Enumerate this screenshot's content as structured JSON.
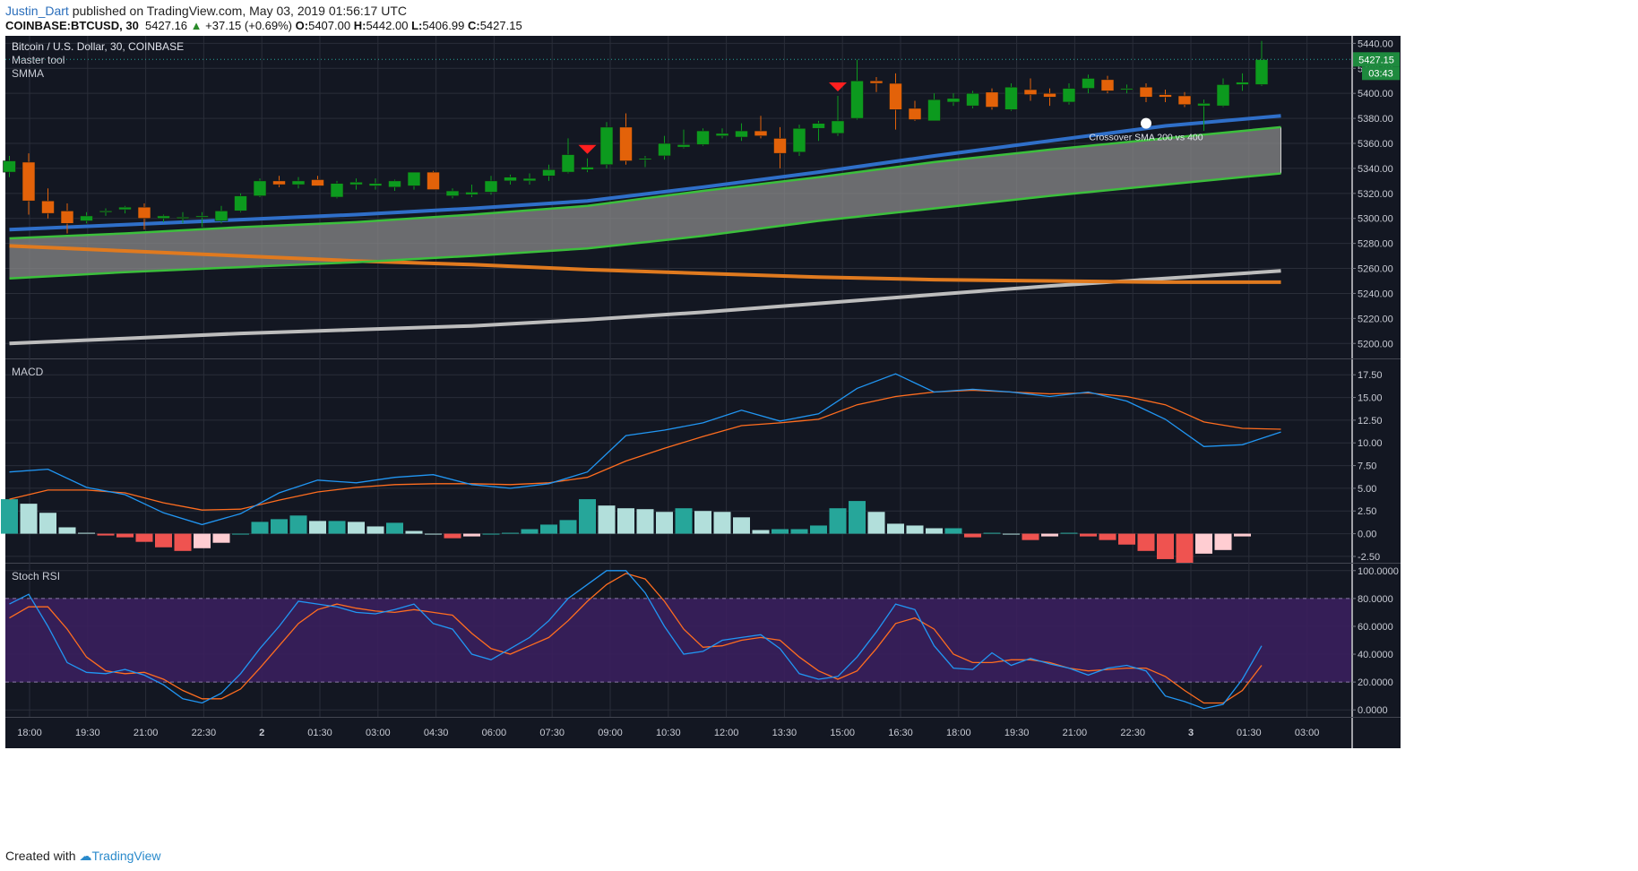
{
  "header": {
    "author": "Justin_Dart",
    "published": "published on TradingView.com, May 03, 2019 01:56:17 UTC",
    "symbol": "COINBASE:BTCUSD, 30",
    "last": "5427.16",
    "change": "+37.15 (+0.69%)",
    "open_label": "O:",
    "open": "5407.00",
    "high_label": "H:",
    "high": "5442.00",
    "low_label": "L:",
    "low": "5406.99",
    "close_label": "C:",
    "close": "5427.15"
  },
  "footer": {
    "created_with": "Created with",
    "brand": "TradingView"
  },
  "colors": {
    "background": "#131722",
    "grid": "#2a2e39",
    "bull": "#26a69a",
    "candle_up": "#0c9a1e",
    "candle_down": "#e36209",
    "smma_fast": "#2f6fc9",
    "band": "#3cbf3c",
    "band_fill": "#8a8a8a",
    "sma200": "#e07a1f",
    "sma400": "#bdbdbd",
    "macd": "#2196f3",
    "signal": "#ff6d1f",
    "hist_pos_strong": "#26a69a",
    "hist_pos_weak": "#b2dfdb",
    "hist_neg_strong": "#ef5350",
    "hist_neg_weak": "#ffcdd2",
    "stoch_k": "#2196f3",
    "stoch_d": "#ff6d1f",
    "stoch_band": "#3a1f5d"
  },
  "chart_data": [
    {
      "type": "candlestick",
      "title": "Bitcoin / U.S. Dollar, 30, COINBASE",
      "legend": [
        "Master tool",
        "SMMA"
      ],
      "ylim": [
        5188,
        5446
      ],
      "y_ticks": [
        "5200.00",
        "5220.00",
        "5240.00",
        "5260.00",
        "5280.00",
        "5300.00",
        "5320.00",
        "5340.00",
        "5360.00",
        "5380.00",
        "5400.00",
        "5420.00",
        "5440.00"
      ],
      "x_ticks": [
        "18:00",
        "19:30",
        "21:00",
        "22:30",
        "2",
        "01:30",
        "03:00",
        "04:30",
        "06:00",
        "07:30",
        "09:00",
        "10:30",
        "12:00",
        "13:30",
        "15:00",
        "16:30",
        "18:00",
        "19:30",
        "21:00",
        "22:30",
        "3",
        "01:30",
        "03:00"
      ],
      "last_price": "5427.15",
      "countdown": "03:43",
      "annotation": "Crossover SMA 200 vs 400",
      "down_markers": [
        30,
        43
      ],
      "candles": [
        [
          5337,
          5350,
          5333,
          5346
        ],
        [
          5345,
          5352,
          5303,
          5314
        ],
        [
          5314,
          5324,
          5300,
          5304
        ],
        [
          5306,
          5312,
          5288,
          5296
        ],
        [
          5298,
          5305,
          5296,
          5302
        ],
        [
          5305,
          5308,
          5302,
          5306
        ],
        [
          5307,
          5310,
          5304,
          5309
        ],
        [
          5309,
          5312,
          5291,
          5300
        ],
        [
          5300,
          5303,
          5297,
          5302
        ],
        [
          5301,
          5305,
          5296,
          5301
        ],
        [
          5301,
          5305,
          5293,
          5302
        ],
        [
          5298,
          5310,
          5296,
          5306
        ],
        [
          5306,
          5320,
          5305,
          5318
        ],
        [
          5318,
          5332,
          5317,
          5330
        ],
        [
          5330,
          5334,
          5325,
          5327
        ],
        [
          5327,
          5333,
          5324,
          5330
        ],
        [
          5331,
          5334,
          5326,
          5326
        ],
        [
          5317,
          5330,
          5316,
          5328
        ],
        [
          5327,
          5332,
          5323,
          5329
        ],
        [
          5326,
          5332,
          5323,
          5328
        ],
        [
          5325,
          5331,
          5322,
          5330
        ],
        [
          5326,
          5336,
          5323,
          5337
        ],
        [
          5337,
          5338,
          5323,
          5323
        ],
        [
          5318,
          5324,
          5316,
          5322
        ],
        [
          5319,
          5327,
          5317,
          5321
        ],
        [
          5321,
          5334,
          5319,
          5330
        ],
        [
          5330,
          5335,
          5327,
          5333
        ],
        [
          5330,
          5336,
          5327,
          5332
        ],
        [
          5334,
          5343,
          5330,
          5339
        ],
        [
          5337,
          5364,
          5336,
          5351
        ],
        [
          5339,
          5348,
          5337,
          5341
        ],
        [
          5343,
          5377,
          5340,
          5373
        ],
        [
          5373,
          5384,
          5343,
          5346
        ],
        [
          5347,
          5350,
          5341,
          5348
        ],
        [
          5350,
          5366,
          5347,
          5360
        ],
        [
          5357,
          5371,
          5356,
          5359
        ],
        [
          5359,
          5372,
          5358,
          5370
        ],
        [
          5366,
          5372,
          5364,
          5368
        ],
        [
          5365,
          5376,
          5362,
          5370
        ],
        [
          5370,
          5382,
          5364,
          5366
        ],
        [
          5364,
          5373,
          5340,
          5352
        ],
        [
          5353,
          5375,
          5350,
          5372
        ],
        [
          5372,
          5378,
          5362,
          5376
        ],
        [
          5368,
          5398,
          5366,
          5378
        ],
        [
          5380,
          5427,
          5379,
          5410
        ],
        [
          5410,
          5413,
          5401,
          5408
        ],
        [
          5408,
          5416,
          5371,
          5387
        ],
        [
          5388,
          5394,
          5378,
          5379
        ],
        [
          5378,
          5400,
          5378,
          5395
        ],
        [
          5393,
          5400,
          5390,
          5396
        ],
        [
          5390,
          5402,
          5388,
          5400
        ],
        [
          5401,
          5404,
          5387,
          5389
        ],
        [
          5387,
          5408,
          5386,
          5405
        ],
        [
          5403,
          5412,
          5394,
          5399
        ],
        [
          5400,
          5404,
          5390,
          5397
        ],
        [
          5393,
          5408,
          5391,
          5404
        ],
        [
          5404,
          5415,
          5400,
          5412
        ],
        [
          5411,
          5414,
          5400,
          5402
        ],
        [
          5403,
          5407,
          5400,
          5404
        ],
        [
          5405,
          5408,
          5393,
          5397
        ],
        [
          5399,
          5403,
          5393,
          5397
        ],
        [
          5398,
          5401,
          5389,
          5391
        ],
        [
          5390,
          5395,
          5370,
          5392
        ],
        [
          5390,
          5412,
          5389,
          5407
        ],
        [
          5407,
          5416,
          5402,
          5409
        ],
        [
          5407,
          5442,
          5406,
          5427
        ]
      ],
      "series": [
        {
          "name": "SMMA",
          "x": [
            0,
            6,
            12,
            18,
            24,
            30,
            36,
            42,
            48,
            54,
            60,
            66
          ],
          "values": [
            5291,
            5295,
            5299,
            5303,
            5308,
            5314,
            5325,
            5337,
            5350,
            5362,
            5374,
            5382
          ]
        },
        {
          "name": "upper band",
          "x": [
            0,
            6,
            12,
            18,
            24,
            30,
            36,
            42,
            48,
            54,
            60,
            66
          ],
          "values": [
            5284,
            5288,
            5293,
            5297,
            5303,
            5310,
            5322,
            5333,
            5345,
            5355,
            5364,
            5373
          ]
        },
        {
          "name": "lower band",
          "x": [
            0,
            6,
            12,
            18,
            24,
            30,
            36,
            42,
            48,
            54,
            60,
            66
          ],
          "values": [
            5252,
            5257,
            5261,
            5265,
            5270,
            5276,
            5286,
            5298,
            5308,
            5318,
            5327,
            5336
          ]
        },
        {
          "name": "SMA 200",
          "x": [
            0,
            6,
            12,
            18,
            24,
            30,
            36,
            42,
            48,
            54,
            60,
            66
          ],
          "values": [
            5278,
            5274,
            5270,
            5266,
            5263,
            5259,
            5256,
            5253,
            5251,
            5250,
            5249,
            5249
          ]
        },
        {
          "name": "SMA 400",
          "x": [
            0,
            6,
            12,
            18,
            24,
            30,
            36,
            42,
            48,
            54,
            60,
            66
          ],
          "values": [
            5200,
            5204,
            5208,
            5211,
            5214,
            5219,
            5225,
            5232,
            5239,
            5246,
            5252,
            5258
          ]
        }
      ]
    },
    {
      "type": "line",
      "title": "MACD",
      "ylim": [
        -3.2,
        19.2
      ],
      "y_ticks": [
        "-2.50",
        "0.00",
        "2.50",
        "5.00",
        "7.50",
        "10.00",
        "12.50",
        "15.00",
        "17.50"
      ],
      "series": [
        {
          "name": "MACD",
          "x": [
            0,
            2,
            4,
            6,
            8,
            10,
            12,
            14,
            16,
            18,
            20,
            22,
            24,
            26,
            28,
            30,
            32,
            34,
            36,
            38,
            40,
            42,
            44,
            46,
            48,
            50,
            52,
            54,
            56,
            58,
            60,
            62,
            64,
            66
          ],
          "values": [
            6.8,
            7.1,
            5.1,
            4.3,
            2.3,
            1.0,
            2.2,
            4.5,
            5.9,
            5.6,
            6.2,
            6.5,
            5.4,
            5.0,
            5.5,
            6.8,
            10.8,
            11.4,
            12.2,
            13.6,
            12.4,
            13.2,
            16.0,
            17.6,
            15.6,
            15.9,
            15.6,
            15.1,
            15.6,
            14.6,
            12.6,
            9.6,
            9.8,
            11.2
          ]
        },
        {
          "name": "Signal",
          "x": [
            0,
            2,
            4,
            6,
            8,
            10,
            12,
            14,
            16,
            18,
            20,
            22,
            24,
            26,
            28,
            30,
            32,
            34,
            36,
            38,
            40,
            42,
            44,
            46,
            48,
            50,
            52,
            54,
            56,
            58,
            60,
            62,
            64,
            66
          ],
          "values": [
            3.8,
            4.8,
            4.8,
            4.5,
            3.4,
            2.6,
            2.7,
            3.7,
            4.6,
            5.1,
            5.4,
            5.5,
            5.5,
            5.4,
            5.6,
            6.2,
            8.0,
            9.4,
            10.7,
            11.9,
            12.2,
            12.6,
            14.2,
            15.1,
            15.6,
            15.8,
            15.6,
            15.4,
            15.5,
            15.1,
            14.2,
            12.3,
            11.6,
            11.5
          ]
        }
      ],
      "histogram": [
        3.8,
        3.3,
        2.3,
        0.7,
        0.1,
        -0.2,
        -0.4,
        -0.9,
        -1.5,
        -1.9,
        -1.6,
        -1.0,
        0.0,
        1.3,
        1.6,
        2.0,
        1.4,
        1.4,
        1.3,
        0.8,
        1.2,
        0.3,
        0.0,
        -0.5,
        -0.3,
        0.0,
        0.1,
        0.5,
        1.0,
        1.5,
        3.8,
        3.1,
        2.8,
        2.7,
        2.4,
        2.8,
        2.5,
        2.4,
        1.8,
        0.4,
        0.5,
        0.5,
        0.9,
        2.8,
        3.6,
        2.4,
        1.1,
        0.9,
        0.6,
        0.6,
        -0.4,
        0.1,
        0.0,
        -0.7,
        -0.3,
        0.1,
        -0.3,
        -0.7,
        -1.2,
        -1.9,
        -2.8,
        -3.2,
        -2.2,
        -1.8,
        -0.3
      ]
    },
    {
      "type": "line",
      "title": "Stoch RSI",
      "ylim": [
        -5,
        105
      ],
      "y_ticks": [
        "0.0000",
        "20.0000",
        "40.0000",
        "60.0000",
        "80.0000",
        "100.0000"
      ],
      "band": [
        20,
        80
      ],
      "series": [
        {
          "name": "K",
          "x": [
            0,
            1,
            2,
            3,
            4,
            5,
            6,
            7,
            8,
            9,
            10,
            11,
            12,
            13,
            14,
            15,
            16,
            17,
            18,
            19,
            20,
            21,
            22,
            23,
            24,
            25,
            26,
            27,
            28,
            29,
            30,
            31,
            32,
            33,
            34,
            35,
            36,
            37,
            38,
            39,
            40,
            41,
            42,
            43,
            44,
            45,
            46,
            47,
            48,
            49,
            50,
            51,
            52,
            53,
            54,
            55,
            56,
            57,
            58,
            59,
            60,
            61,
            62,
            63,
            64,
            65
          ],
          "values": [
            76,
            83,
            60,
            34,
            27,
            26,
            29,
            25,
            18,
            8,
            5,
            12,
            26,
            44,
            60,
            78,
            76,
            74,
            70,
            69,
            72,
            76,
            62,
            58,
            40,
            36,
            44,
            52,
            64,
            80,
            90,
            100,
            100,
            84,
            60,
            40,
            42,
            50,
            52,
            54,
            44,
            26,
            22,
            24,
            38,
            56,
            76,
            72,
            46,
            30,
            29,
            41,
            32,
            37,
            33,
            30,
            25,
            30,
            32,
            28,
            10,
            6,
            1,
            4,
            22,
            46
          ]
        },
        {
          "name": "D",
          "x": [
            0,
            1,
            2,
            3,
            4,
            5,
            6,
            7,
            8,
            9,
            10,
            11,
            12,
            13,
            14,
            15,
            16,
            17,
            18,
            19,
            20,
            21,
            22,
            23,
            24,
            25,
            26,
            27,
            28,
            29,
            30,
            31,
            32,
            33,
            34,
            35,
            36,
            37,
            38,
            39,
            40,
            41,
            42,
            43,
            44,
            45,
            46,
            47,
            48,
            49,
            50,
            51,
            52,
            53,
            54,
            55,
            56,
            57,
            58,
            59,
            60,
            61,
            62,
            63,
            64,
            65
          ],
          "values": [
            66,
            74,
            74,
            58,
            38,
            28,
            26,
            27,
            22,
            14,
            8,
            8,
            15,
            30,
            46,
            62,
            72,
            76,
            73,
            71,
            70,
            72,
            70,
            68,
            55,
            44,
            40,
            46,
            52,
            64,
            78,
            90,
            98,
            94,
            78,
            58,
            45,
            46,
            50,
            52,
            50,
            38,
            28,
            22,
            28,
            44,
            62,
            66,
            58,
            40,
            34,
            34,
            36,
            36,
            34,
            30,
            28,
            29,
            30,
            30,
            24,
            14,
            5,
            5,
            14,
            32
          ]
        }
      ]
    }
  ]
}
